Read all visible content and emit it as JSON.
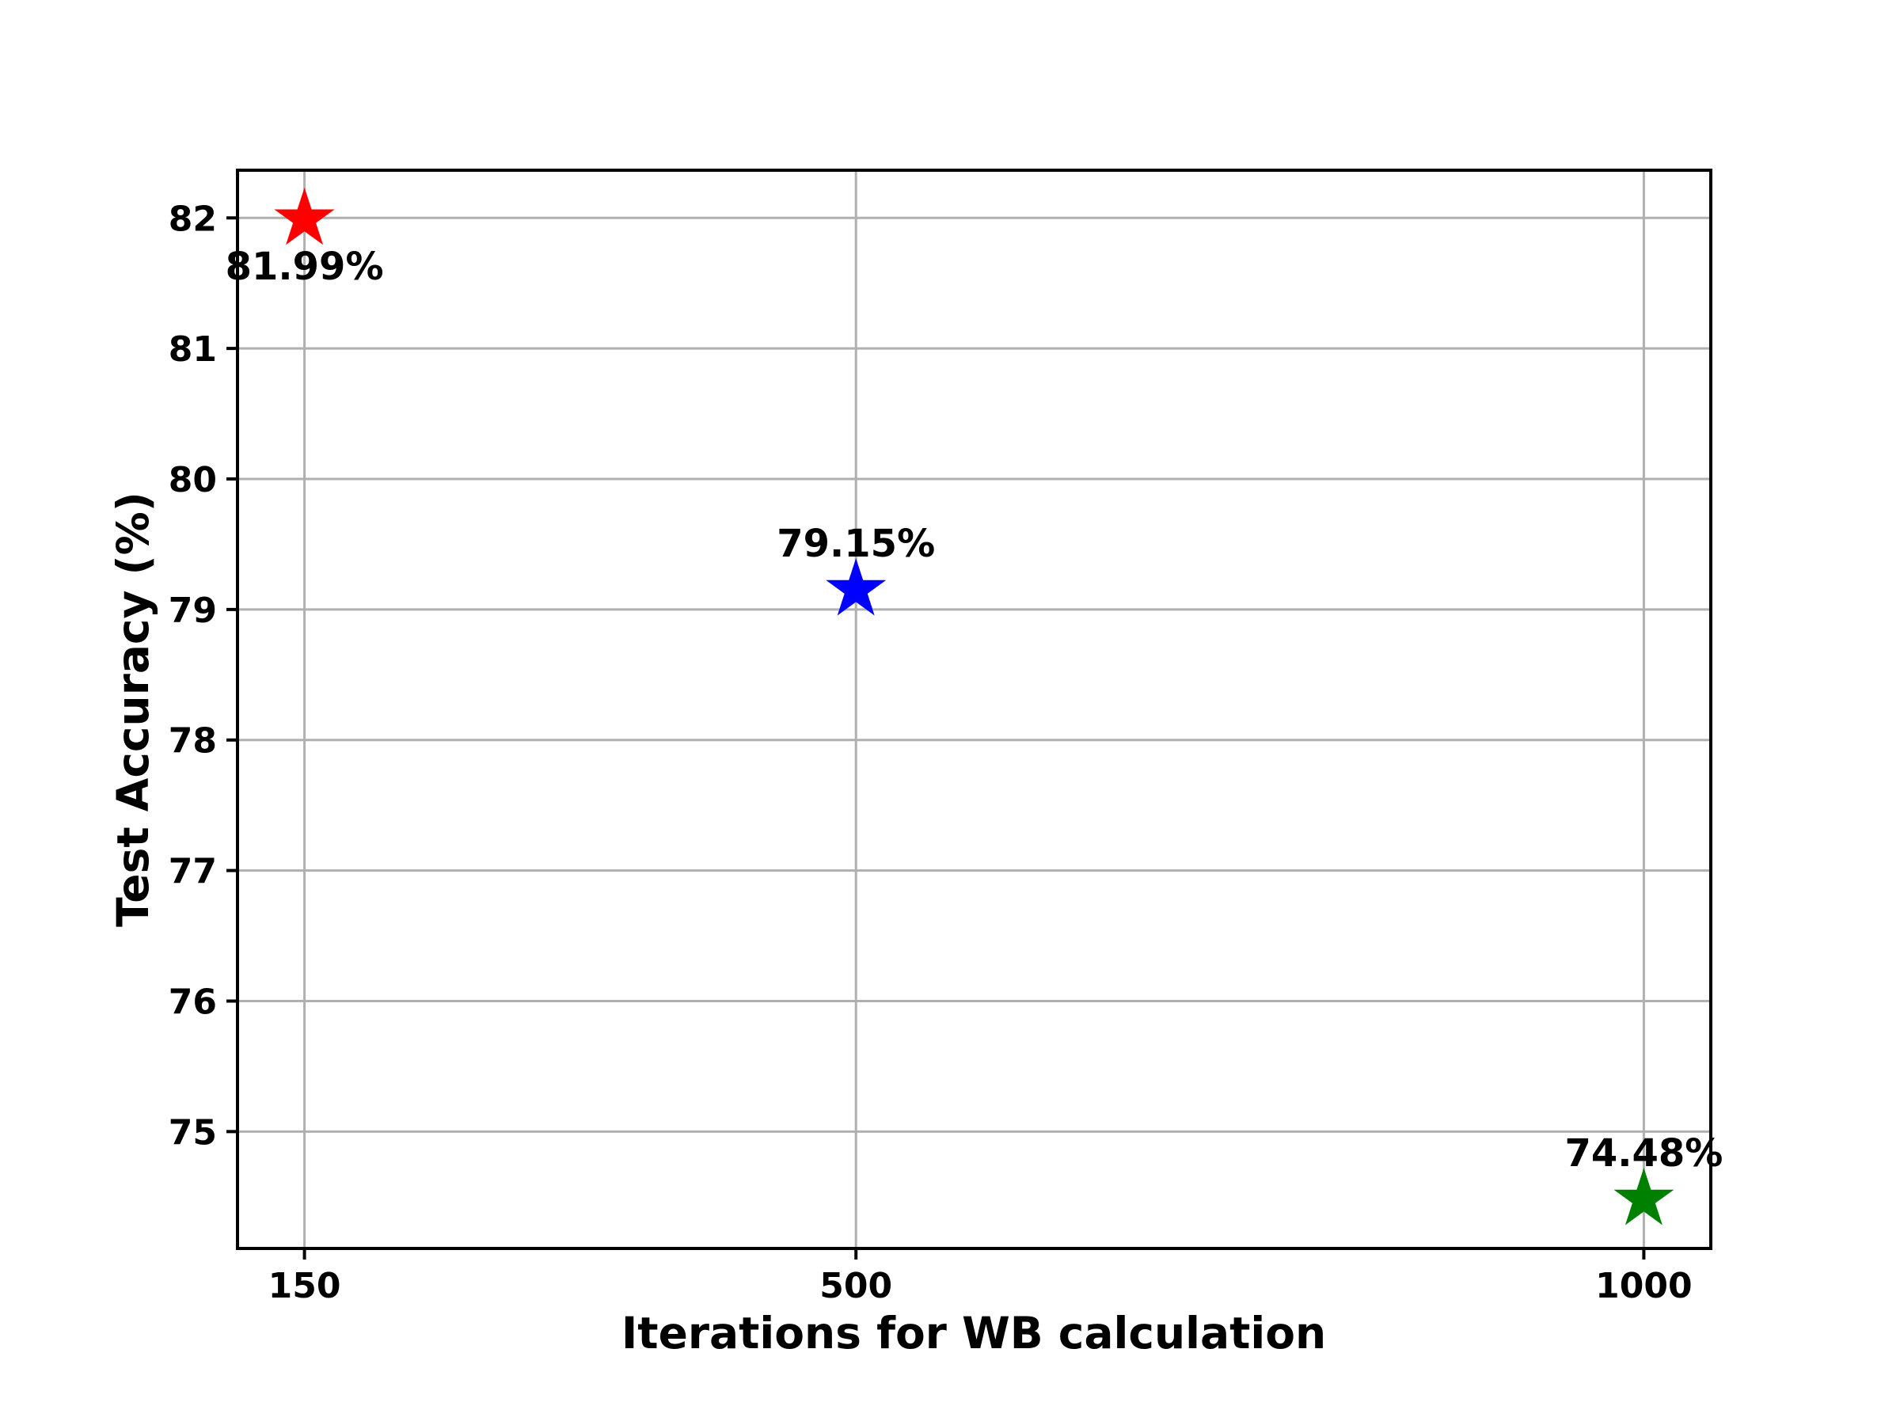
{
  "figure": {
    "background_color": "#ffffff",
    "grid_color": "#b0b0b0",
    "spine_color": "#000000",
    "text_color": "#000000"
  },
  "chart_data": {
    "type": "scatter",
    "title": "",
    "xlabel": "Iterations for WB calculation",
    "ylabel": "Test Accuracy (%)",
    "x_ticks": [
      "150",
      "500",
      "1000"
    ],
    "x_tick_values": [
      150,
      500,
      1000
    ],
    "y_ticks": [
      "75",
      "76",
      "77",
      "78",
      "79",
      "80",
      "81",
      "82"
    ],
    "y_tick_values": [
      75,
      76,
      77,
      78,
      79,
      80,
      81,
      82
    ],
    "xlim": [
      107.5,
      1042.5
    ],
    "ylim": [
      74.1045,
      82.3655
    ],
    "grid": true,
    "legend": "none",
    "marker": "star",
    "points": [
      {
        "x": 150,
        "y": 81.99,
        "label": "81.99%",
        "color": "#ff0000",
        "label_position": "below"
      },
      {
        "x": 500,
        "y": 79.15,
        "label": "79.15%",
        "color": "#0000ff",
        "label_position": "above"
      },
      {
        "x": 1000,
        "y": 74.48,
        "label": "74.48%",
        "color": "#008000",
        "label_position": "above"
      }
    ]
  }
}
